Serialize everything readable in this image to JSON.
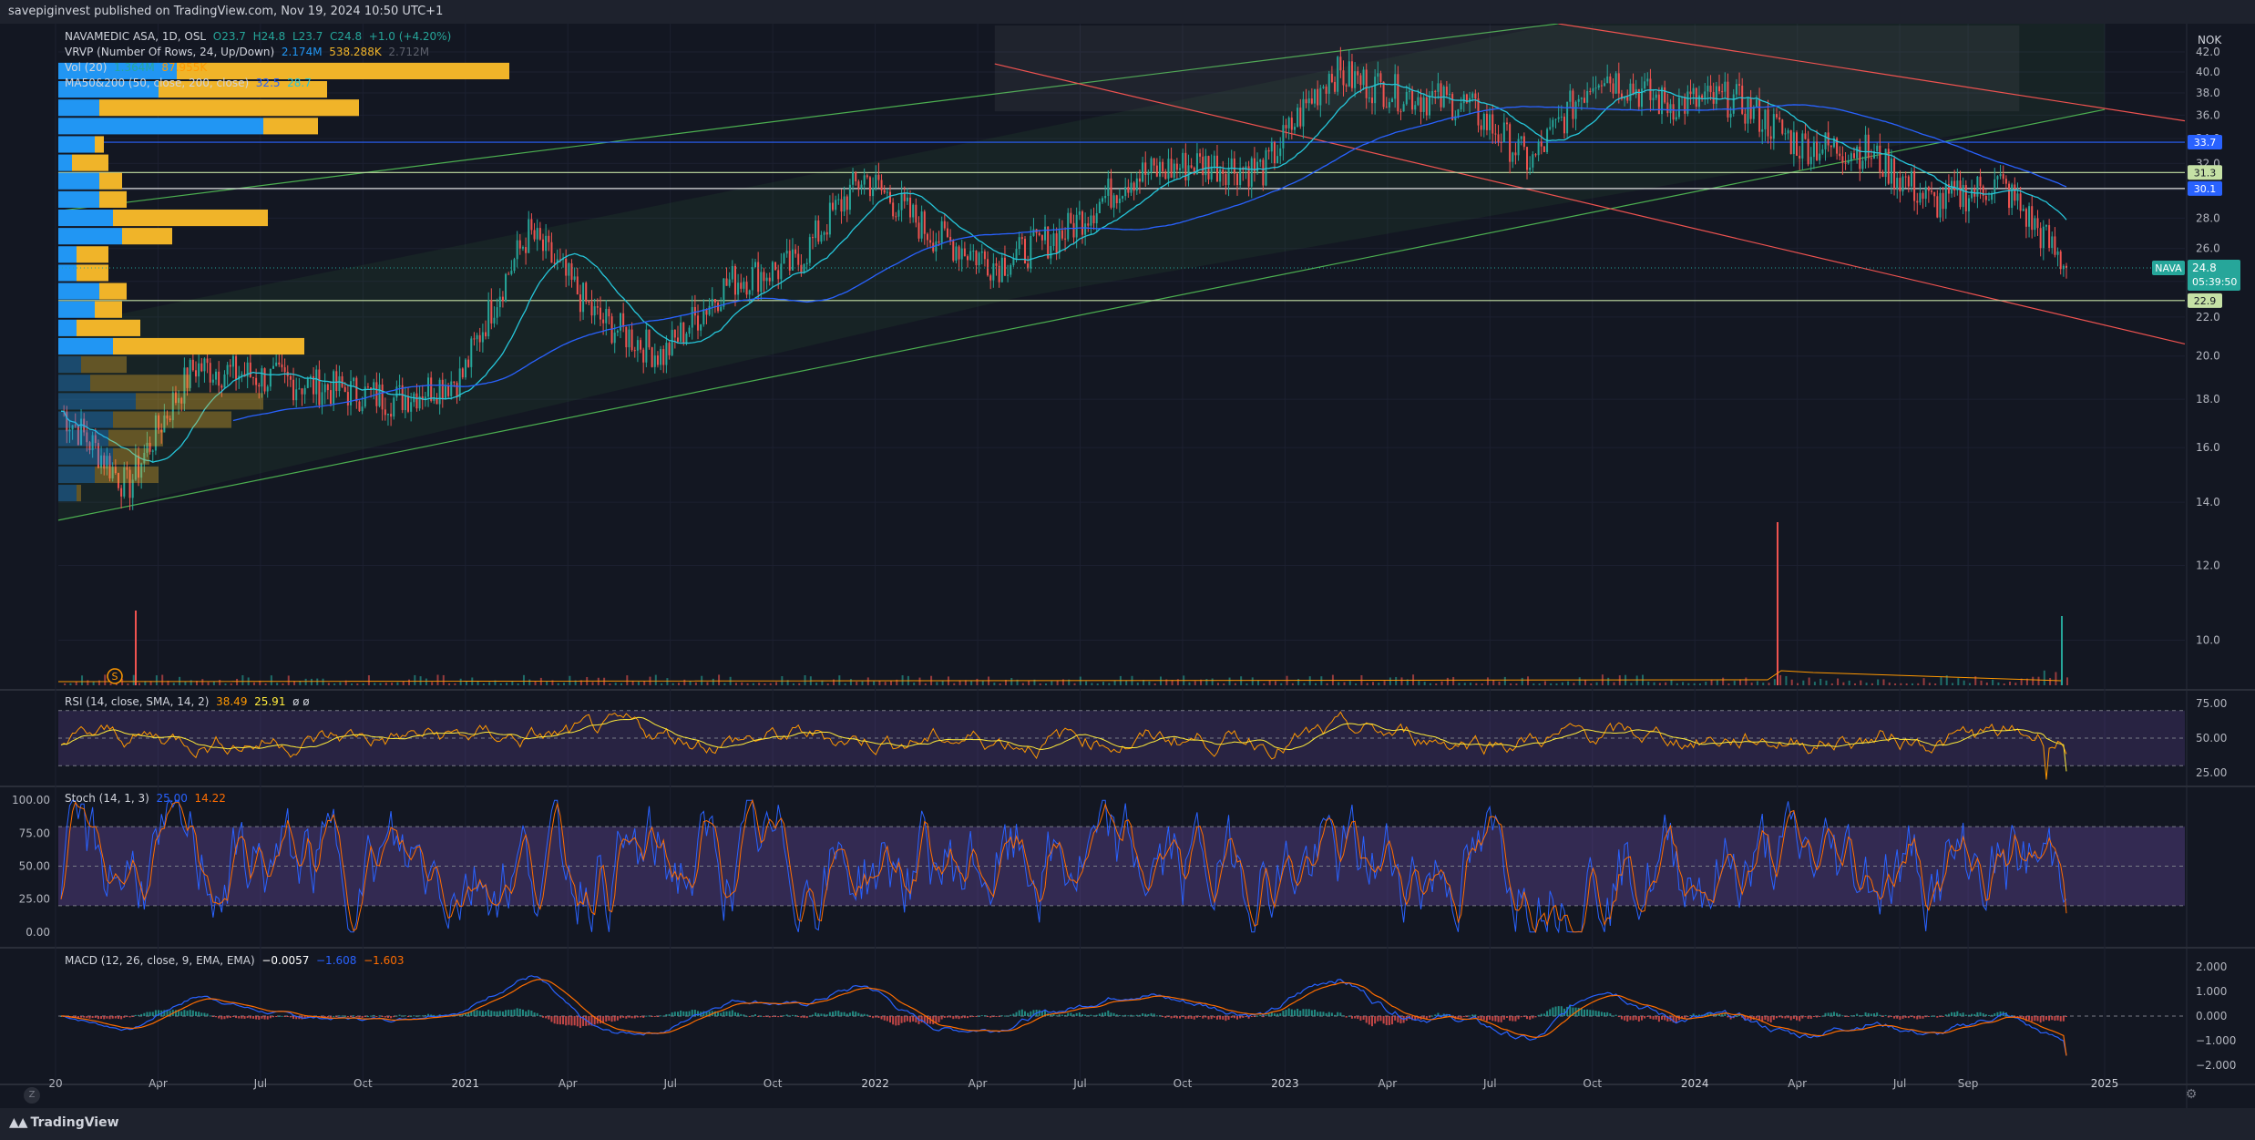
{
  "header": {
    "published_text": "savepiginvest published on TradingView.com, Nov 19, 2024 10:50 UTC+1"
  },
  "footer": {
    "brand": "TradingView",
    "z_label": "Z"
  },
  "currency": "NOK",
  "legends": {
    "main": {
      "name": "NAVAMEDIC ASA, 1D, OSL",
      "o": "O23.7",
      "h": "H24.8",
      "l": "L23.7",
      "c": "C24.8",
      "chg": "+1.0 (+4.20%)"
    },
    "vrvp": {
      "label": "VRVP (Number Of Rows, 24, Up/Down)",
      "v1": "2.174M",
      "v2": "538.288K",
      "v3": "2.712M"
    },
    "vol": {
      "label": "Vol (20)",
      "v1": "1.364M",
      "v2": "87.955K"
    },
    "ma": {
      "label": "MA50&200 (50, close, 200, close)",
      "v1": "32.5",
      "v2": "28.7"
    },
    "rsi": {
      "label": "RSI (14, close, SMA, 14, 2)",
      "v1": "38.49",
      "v2": "25.91",
      "v3": "ø  ø"
    },
    "stoch": {
      "label": "Stoch (14, 1, 3)",
      "v1": "25.00",
      "v2": "14.22"
    },
    "macd": {
      "label": "MACD (12, 26, close, 9, EMA, EMA)",
      "v1": "−0.0057",
      "v2": "−1.608",
      "v3": "−1.603"
    }
  },
  "price_labels": {
    "symbol": "NAVA",
    "last": "24.8",
    "countdown": "05:39:50",
    "h1": "33.7",
    "h2": "31.3",
    "h3": "30.1",
    "h4": "22.9",
    "dividend_marker": "S"
  },
  "colors": {
    "up": "#26a69a",
    "down": "#ef5350",
    "rsi": "#ff9800",
    "rsi_ma": "#ffeb3b",
    "stoch_k": "#2962ff",
    "stoch_d": "#ff6d00",
    "vrvp_up": "#2196f3",
    "vrvp_down": "#f0b429",
    "ma50": "#26a69a",
    "ma200": "#2962ff",
    "channel_up": "#4caf50",
    "channel_down": "#ef5350"
  },
  "chart_data": [
    {
      "type": "candlestick",
      "title": "NAVAMEDIC ASA, 1D, OSL",
      "x_tick_labels": [
        "20",
        "Apr",
        "Jul",
        "Oct",
        "2021",
        "Apr",
        "Jul",
        "Oct",
        "2022",
        "Apr",
        "Jul",
        "Oct",
        "2023",
        "Apr",
        "Jul",
        "Oct",
        "2024",
        "Apr",
        "Jul",
        "Sep",
        "2025"
      ],
      "y_tick_labels": [
        "42.0",
        "40.0",
        "38.0",
        "36.0",
        "34.0",
        "32.0",
        "30.0",
        "28.0",
        "26.0",
        "24.0",
        "22.0",
        "20.0",
        "18.0",
        "16.0",
        "14.0",
        "12.0",
        "10.0"
      ],
      "y_scale": "log",
      "ylim": [
        9.2,
        45
      ],
      "series": [
        {
          "name": "close",
          "x": [
            "2020-01",
            "2020-03",
            "2020-05",
            "2020-07",
            "2020-09",
            "2020-11",
            "2021-01",
            "2021-03",
            "2021-05",
            "2021-07",
            "2021-09",
            "2021-11",
            "2022-01",
            "2022-03",
            "2022-05",
            "2022-07",
            "2022-09",
            "2022-11",
            "2023-01",
            "2023-03",
            "2023-05",
            "2023-07",
            "2023-09",
            "2023-11",
            "2024-01",
            "2024-03",
            "2024-05",
            "2024-07",
            "2024-09",
            "2024-10",
            "2024-11"
          ],
          "values": [
            17.5,
            14.5,
            19.5,
            19.0,
            18.5,
            18.0,
            19.0,
            27.0,
            22.0,
            20.0,
            24.0,
            25.0,
            31.0,
            27.0,
            25.0,
            27.0,
            31.0,
            32.0,
            31.5,
            40.0,
            38.0,
            37.0,
            32.0,
            40.0,
            37.0,
            37.5,
            33.5,
            33.0,
            29.0,
            30.5,
            24.8
          ]
        }
      ],
      "ma50_last": 32.5,
      "ma200_last": 28.7,
      "horizontal_levels": [
        33.7,
        31.3,
        30.1,
        22.9
      ],
      "last_price": 24.8
    },
    {
      "type": "line",
      "title": "RSI (14, close, SMA, 14, 2)",
      "y_tick_labels": [
        "75.00",
        "50.00",
        "25.00"
      ],
      "ylim": [
        15,
        85
      ],
      "bands": [
        70,
        30
      ],
      "series": [
        {
          "name": "RSI",
          "last": 38.49
        },
        {
          "name": "RSI MA",
          "last": 25.91
        }
      ]
    },
    {
      "type": "line",
      "title": "Stoch (14, 1, 3)",
      "y_tick_labels": [
        "100.00",
        "75.00",
        "50.00",
        "25.00",
        "0.00"
      ],
      "ylim": [
        -5,
        105
      ],
      "bands": [
        80,
        20
      ],
      "series": [
        {
          "name": "%K",
          "last": 25.0
        },
        {
          "name": "%D",
          "last": 14.22
        }
      ]
    },
    {
      "type": "bar",
      "title": "MACD (12, 26, close, 9, EMA, EMA)",
      "y_tick_labels": [
        "2.000",
        "1.000",
        "0.000",
        "−1.000",
        "−2.000"
      ],
      "ylim": [
        -2.4,
        2.4
      ],
      "series": [
        {
          "name": "Histogram",
          "last": -0.0057
        },
        {
          "name": "MACD",
          "last": -1.608
        },
        {
          "name": "Signal",
          "last": -1.603
        }
      ]
    }
  ]
}
